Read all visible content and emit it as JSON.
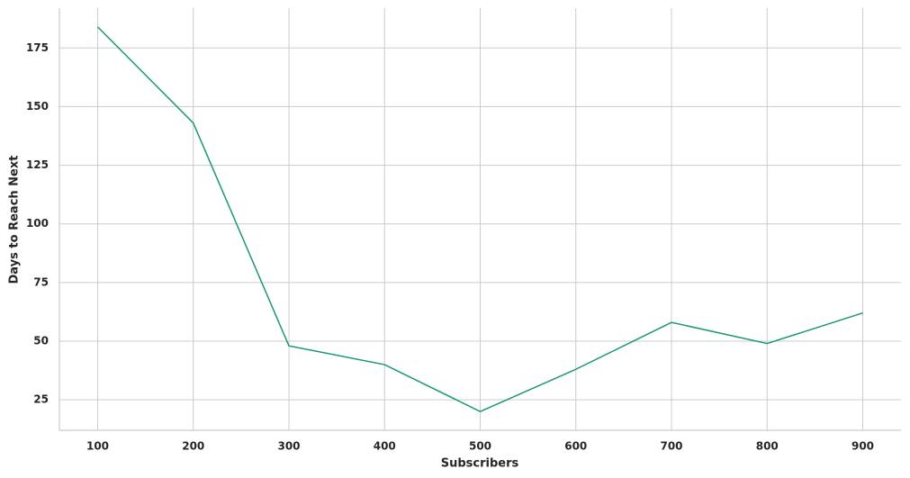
{
  "chart_data": {
    "type": "line",
    "x_label": "Subscribers",
    "y_label": "Days to Reach Next",
    "x": [
      100,
      200,
      300,
      400,
      500,
      600,
      700,
      800,
      900
    ],
    "series": [
      {
        "name": "Days to Reach Next",
        "color": "#1a9873",
        "values": [
          184,
          143,
          48,
          40,
          20,
          38,
          58,
          49,
          62
        ]
      }
    ],
    "xlim": [
      60,
      940
    ],
    "xticks": [
      100,
      200,
      300,
      400,
      500,
      600,
      700,
      800,
      900
    ],
    "ylim": [
      12,
      192
    ],
    "yticks": [
      25,
      50,
      75,
      100,
      125,
      150,
      175
    ],
    "grid": true
  }
}
